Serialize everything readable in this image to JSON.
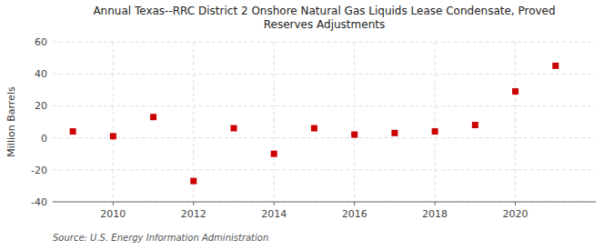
{
  "chart_data": {
    "type": "scatter",
    "title": "Annual Texas--RRC District 2 Onshore Natural Gas Liquids Lease Condensate, Proved\nReserves Adjustments",
    "ylabel": "Million Barrels",
    "source": "Source: U.S. Energy Information Administration",
    "x": [
      2009,
      2010,
      2011,
      2012,
      2013,
      2014,
      2015,
      2016,
      2017,
      2018,
      2019,
      2020,
      2021
    ],
    "values": [
      4,
      1,
      13,
      -27,
      6,
      -10,
      6,
      2,
      3,
      4,
      8,
      29,
      45
    ],
    "xlim": [
      2008.5,
      2022
    ],
    "xticks": [
      2010,
      2012,
      2014,
      2016,
      2018,
      2020
    ],
    "ylim": [
      -40,
      60
    ],
    "yticks": [
      -40,
      -20,
      0,
      20,
      40,
      60
    ],
    "color": "#cc0000",
    "marker": "square",
    "grid": true
  }
}
